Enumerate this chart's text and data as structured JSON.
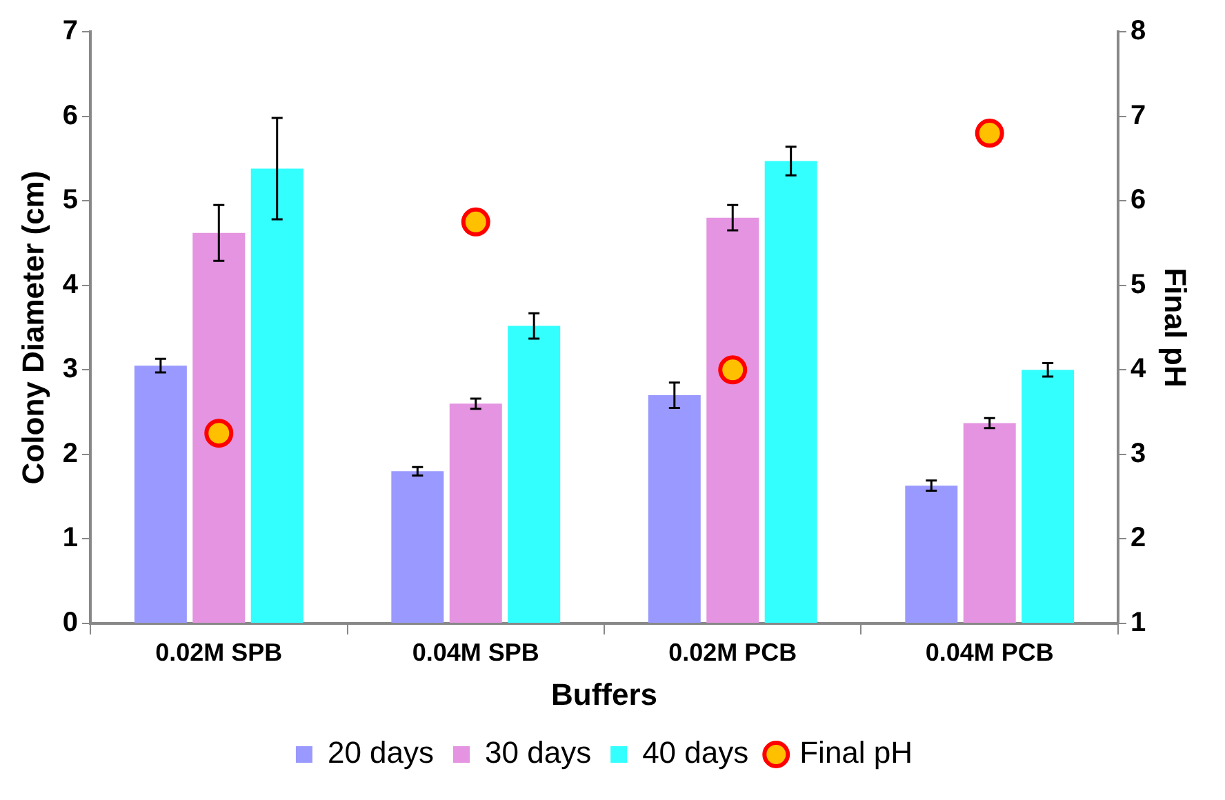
{
  "chart_data": {
    "type": "bar",
    "xlabel": "Buffers",
    "ylabel": "Colony Diameter (cm)",
    "y2label": "Final pH",
    "categories": [
      "0.02M SPB",
      "0.04M SPB",
      "0.02M PCB",
      "0.04M PCB"
    ],
    "series": [
      {
        "name": "20 days",
        "color": "#9999ff",
        "values": [
          3.05,
          1.8,
          2.7,
          1.63
        ],
        "errors": [
          0.08,
          0.05,
          0.15,
          0.06
        ]
      },
      {
        "name": "30 days",
        "color": "#e494e0",
        "values": [
          4.62,
          2.6,
          4.8,
          2.37
        ],
        "errors": [
          0.33,
          0.06,
          0.15,
          0.06
        ]
      },
      {
        "name": "40 days",
        "color": "#33ffff",
        "values": [
          5.38,
          3.52,
          5.47,
          3.0
        ],
        "errors": [
          0.6,
          0.15,
          0.17,
          0.08
        ]
      },
      {
        "name": "Final pH",
        "type": "scatter",
        "axis": "y2",
        "color": "#ffc000",
        "marker": "circle",
        "x": [
          "0.02M SPB",
          "0.04M SPB",
          "0.02M PCB",
          "0.04M PCB"
        ],
        "values": [
          3.25,
          5.75,
          4.0,
          6.8
        ]
      }
    ],
    "ylim": [
      0,
      7
    ],
    "yticks": [
      0,
      1,
      2,
      3,
      4,
      5,
      6,
      7
    ],
    "y2lim": [
      1,
      8
    ],
    "y2ticks": [
      1,
      2,
      3,
      4,
      5,
      6,
      7,
      8
    ],
    "grid": false,
    "legend": "bottom"
  }
}
